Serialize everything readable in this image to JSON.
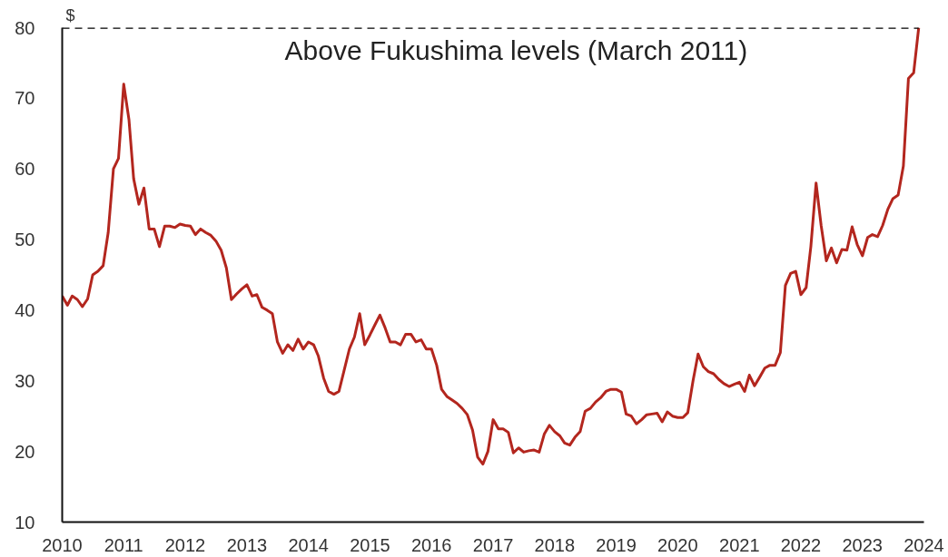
{
  "chart_data": {
    "type": "line",
    "ylabel": "$",
    "x": [
      "2010-01",
      "2010-02",
      "2010-03",
      "2010-04",
      "2010-05",
      "2010-06",
      "2010-07",
      "2010-08",
      "2010-09",
      "2010-10",
      "2010-11",
      "2010-12",
      "2011-01",
      "2011-02",
      "2011-03",
      "2011-04",
      "2011-05",
      "2011-06",
      "2011-07",
      "2011-08",
      "2011-09",
      "2011-10",
      "2011-11",
      "2011-12",
      "2012-01",
      "2012-02",
      "2012-03",
      "2012-04",
      "2012-05",
      "2012-06",
      "2012-07",
      "2012-08",
      "2012-09",
      "2012-10",
      "2012-11",
      "2012-12",
      "2013-01",
      "2013-02",
      "2013-03",
      "2013-04",
      "2013-05",
      "2013-06",
      "2013-07",
      "2013-08",
      "2013-09",
      "2013-10",
      "2013-11",
      "2013-12",
      "2014-01",
      "2014-02",
      "2014-03",
      "2014-04",
      "2014-05",
      "2014-06",
      "2014-07",
      "2014-08",
      "2014-09",
      "2014-10",
      "2014-11",
      "2014-12",
      "2015-01",
      "2015-02",
      "2015-03",
      "2015-04",
      "2015-05",
      "2015-06",
      "2015-07",
      "2015-08",
      "2015-09",
      "2015-10",
      "2015-11",
      "2015-12",
      "2016-01",
      "2016-02",
      "2016-03",
      "2016-04",
      "2016-05",
      "2016-06",
      "2016-07",
      "2016-08",
      "2016-09",
      "2016-10",
      "2016-11",
      "2016-12",
      "2017-01",
      "2017-02",
      "2017-03",
      "2017-04",
      "2017-05",
      "2017-06",
      "2017-07",
      "2017-08",
      "2017-09",
      "2017-10",
      "2017-11",
      "2017-12",
      "2018-01",
      "2018-02",
      "2018-03",
      "2018-04",
      "2018-05",
      "2018-06",
      "2018-07",
      "2018-08",
      "2018-09",
      "2018-10",
      "2018-11",
      "2018-12",
      "2019-01",
      "2019-02",
      "2019-03",
      "2019-04",
      "2019-05",
      "2019-06",
      "2019-07",
      "2019-08",
      "2019-09",
      "2019-10",
      "2019-11",
      "2019-12",
      "2020-01",
      "2020-02",
      "2020-03",
      "2020-04",
      "2020-05",
      "2020-06",
      "2020-07",
      "2020-08",
      "2020-09",
      "2020-10",
      "2020-11",
      "2020-12",
      "2021-01",
      "2021-02",
      "2021-03",
      "2021-04",
      "2021-05",
      "2021-06",
      "2021-07",
      "2021-08",
      "2021-09",
      "2021-10",
      "2021-11",
      "2021-12",
      "2022-01",
      "2022-02",
      "2022-03",
      "2022-04",
      "2022-05",
      "2022-06",
      "2022-07",
      "2022-08",
      "2022-09",
      "2022-10",
      "2022-11",
      "2022-12",
      "2023-01",
      "2023-02",
      "2023-03",
      "2023-04",
      "2023-05",
      "2023-06",
      "2023-07",
      "2023-08",
      "2023-09",
      "2023-10",
      "2023-11",
      "2023-12"
    ],
    "series": [
      {
        "color": "#b3261e",
        "values": [
          42,
          40.7,
          42,
          41.5,
          40.5,
          41.6,
          45,
          45.5,
          46.3,
          51,
          60,
          61.5,
          72,
          67,
          58.6,
          55,
          57.3,
          51.5,
          51.5,
          49,
          51.9,
          51.9,
          51.7,
          52.2,
          52,
          51.9,
          50.7,
          51.5,
          51,
          50.6,
          49.8,
          48.5,
          46,
          41.5,
          42.3,
          43,
          43.6,
          42,
          42.2,
          40.4,
          40,
          39.5,
          35.5,
          33.9,
          35.1,
          34.3,
          35.9,
          34.5,
          35.5,
          35.1,
          33.5,
          30.4,
          28.5,
          28.1,
          28.5,
          31.5,
          34.5,
          36.2,
          39.5,
          35.1,
          36.5,
          38,
          39.3,
          37.5,
          35.5,
          35.5,
          35.1,
          36.6,
          36.6,
          35.5,
          35.8,
          34.5,
          34.5,
          32.2,
          28.8,
          27.8,
          27.3,
          26.8,
          26.1,
          25.2,
          23,
          19.2,
          18.2,
          20,
          24.5,
          23.2,
          23.2,
          22.7,
          19.8,
          20.5,
          19.9,
          20.1,
          20.2,
          19.9,
          22.5,
          23.7,
          22.8,
          22.2,
          21.2,
          20.9,
          22,
          22.8,
          25.7,
          26.1,
          27,
          27.6,
          28.5,
          28.8,
          28.8,
          28.4,
          25.3,
          25,
          23.9,
          24.5,
          25.2,
          25.3,
          25.4,
          24.2,
          25.6,
          25,
          24.8,
          24.8,
          25.5,
          30,
          33.8,
          32,
          31.3,
          31,
          30.2,
          29.6,
          29.2,
          29.5,
          29.8,
          28.5,
          30.8,
          29.3,
          30.5,
          31.8,
          32.2,
          32.2,
          34,
          43.5,
          45.2,
          45.5,
          42.2,
          43.2,
          49,
          58,
          52,
          47,
          48.8,
          46.7,
          48.6,
          48.5,
          51.8,
          49.3,
          47.7,
          50.3,
          50.7,
          50.4,
          52,
          54.3,
          55.8,
          56.3,
          60.4,
          72.8,
          73.6,
          80
        ]
      }
    ],
    "xlim": [
      "2010-01",
      "2024-01"
    ],
    "xticks": [
      "2010",
      "2011",
      "2012",
      "2013",
      "2014",
      "2015",
      "2016",
      "2017",
      "2018",
      "2019",
      "2020",
      "2021",
      "2022",
      "2023",
      "2024"
    ],
    "ylim": [
      10,
      80
    ],
    "yticks": [
      10,
      20,
      30,
      40,
      50,
      60,
      70,
      80
    ],
    "grid": false,
    "ref_lines": [
      {
        "axis": "y",
        "value": 80,
        "label": "Above Fukushima levels (March 2011)",
        "color": "#000000",
        "line_style": "dashed"
      }
    ]
  }
}
